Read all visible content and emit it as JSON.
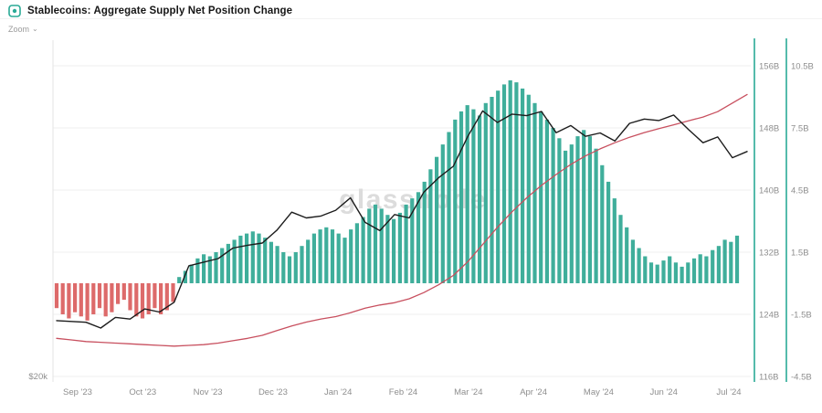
{
  "header": {
    "title": "Stablecoins: Aggregate Supply Net Position Change"
  },
  "toolbar": {
    "zoom_label": "Zoom"
  },
  "watermark": "glassnode",
  "colors": {
    "bar_positive": "#3fae9b",
    "bar_negative": "#dd6a6a",
    "price_line": "#1c1c1c",
    "supply_line": "#c8505f",
    "axis_line_teal": "#2aaa96",
    "grid_line": "#efefef",
    "axis_text": "#8e8e8e",
    "watermark_text": "#dcdcdc"
  },
  "chart_data": {
    "type": "mixed",
    "title": "Stablecoins: Aggregate Supply Net Position Change",
    "x_tick_labels": [
      "Sep '23",
      "Oct '23",
      "Nov '23",
      "Dec '23",
      "Jan '24",
      "Feb '24",
      "Mar '24",
      "Apr '24",
      "May '24",
      "Jun '24",
      "Jul '24"
    ],
    "left_axis": {
      "visible_tick": "$20k",
      "scale": "log",
      "unit": "USD"
    },
    "right_axis_supply": {
      "ticks": [
        "156B",
        "148B",
        "140B",
        "132B",
        "124B",
        "116B"
      ],
      "range": [
        116,
        156
      ],
      "unit": "B USD"
    },
    "right_axis_net": {
      "ticks": [
        "10.5B",
        "7.5B",
        "4.5B",
        "1.5B",
        "-1.5B",
        "-4.5B"
      ],
      "range": [
        -4.5,
        10.5
      ],
      "unit": "B USD"
    },
    "grid": true,
    "legend": "none",
    "series": [
      {
        "name": "net_position_change_bars",
        "type": "bar",
        "axis": "right_net",
        "unit": "B USD",
        "values": [
          -1.2,
          -1.5,
          -1.7,
          -1.4,
          -1.6,
          -1.8,
          -1.5,
          -1.2,
          -1.6,
          -1.4,
          -1.0,
          -0.8,
          -1.3,
          -1.6,
          -1.7,
          -1.5,
          -1.2,
          -1.5,
          -1.3,
          -0.9,
          0.3,
          0.6,
          0.9,
          1.2,
          1.4,
          1.3,
          1.5,
          1.7,
          1.9,
          2.1,
          2.3,
          2.4,
          2.5,
          2.4,
          2.2,
          2.0,
          1.8,
          1.5,
          1.3,
          1.5,
          1.8,
          2.1,
          2.4,
          2.6,
          2.7,
          2.6,
          2.4,
          2.2,
          2.6,
          2.9,
          3.2,
          3.6,
          3.8,
          3.6,
          3.3,
          3.1,
          3.4,
          3.8,
          4.1,
          4.4,
          4.9,
          5.5,
          6.1,
          6.7,
          7.3,
          7.9,
          8.3,
          8.6,
          8.4,
          8.1,
          8.7,
          9.0,
          9.3,
          9.6,
          9.8,
          9.7,
          9.4,
          9.1,
          8.7,
          8.3,
          7.9,
          7.5,
          7.0,
          6.4,
          6.7,
          7.1,
          7.4,
          7.1,
          6.5,
          5.7,
          4.9,
          4.1,
          3.3,
          2.7,
          2.1,
          1.7,
          1.3,
          1.0,
          0.9,
          1.1,
          1.3,
          1.0,
          0.8,
          1.0,
          1.2,
          1.4,
          1.3,
          1.6,
          1.8,
          2.1,
          2.0,
          2.3
        ]
      },
      {
        "name": "price_line_black",
        "type": "line",
        "axis": "left",
        "unit": "k USD",
        "values": [
          26.1,
          26.0,
          25.9,
          25.2,
          26.5,
          26.3,
          27.6,
          27.2,
          28.5,
          33.9,
          34.5,
          35.1,
          36.9,
          37.4,
          37.8,
          40.2,
          43.8,
          42.6,
          43.0,
          44.2,
          46.9,
          41.7,
          40.1,
          43.3,
          42.6,
          48.2,
          51.6,
          54.5,
          63.0,
          71.0,
          67.2,
          69.9,
          69.4,
          70.8,
          64.0,
          66.2,
          62.9,
          63.9,
          61.5,
          66.9,
          68.3,
          67.8,
          69.6,
          65.0,
          61.0,
          62.7,
          56.8,
          58.5
        ]
      },
      {
        "name": "aggregate_supply_line_red",
        "type": "line",
        "axis": "right_supply",
        "unit": "B USD",
        "values": [
          120.9,
          120.7,
          120.5,
          120.4,
          120.3,
          120.2,
          120.1,
          120.0,
          119.9,
          120.0,
          120.1,
          120.3,
          120.6,
          120.9,
          121.3,
          121.9,
          122.5,
          123.0,
          123.4,
          123.7,
          124.2,
          124.8,
          125.2,
          125.5,
          126.0,
          126.8,
          127.8,
          129.0,
          130.8,
          133.0,
          135.2,
          137.2,
          139.0,
          140.6,
          142.0,
          143.3,
          144.4,
          145.3,
          146.1,
          146.8,
          147.4,
          147.9,
          148.4,
          148.9,
          149.4,
          150.1,
          151.2,
          152.3
        ]
      }
    ]
  }
}
